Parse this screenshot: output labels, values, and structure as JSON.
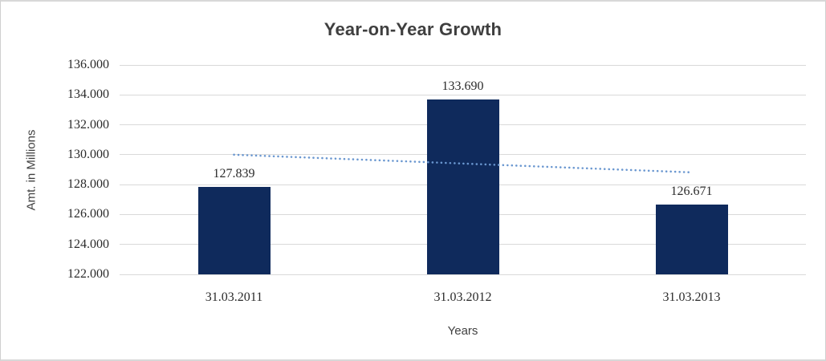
{
  "chart_data": {
    "type": "bar",
    "title": "Year-on-Year Growth",
    "xlabel": "Years",
    "ylabel": "Amt. in Millions",
    "categories": [
      "31.03.2011",
      "31.03.2012",
      "31.03.2013"
    ],
    "values": [
      127.839,
      133.69,
      126.671
    ],
    "value_labels": [
      "127.839",
      "133.690",
      "126.671"
    ],
    "ylim": [
      122.0,
      136.0
    ],
    "yticks": [
      {
        "value": 136.0,
        "label": "136.000"
      },
      {
        "value": 134.0,
        "label": "134.000"
      },
      {
        "value": 132.0,
        "label": "132.000"
      },
      {
        "value": 130.0,
        "label": "130.000"
      },
      {
        "value": 128.0,
        "label": "128.000"
      },
      {
        "value": 126.0,
        "label": "126.000"
      },
      {
        "value": 124.0,
        "label": "124.000"
      },
      {
        "value": 122.0,
        "label": "122.000"
      }
    ],
    "grid": true,
    "legend_position": "none",
    "trendline": {
      "type": "linear",
      "style": "dotted",
      "start_value": 130.0,
      "end_value": 128.82
    },
    "colors": {
      "bar": "#0f2a5c",
      "trendline": "#6a97d0",
      "gridline": "#d9d9d9",
      "title": "#3f3f3f",
      "axis_titles": "#404040",
      "tick_labels": "#2b2b2b",
      "data_labels": "#2b2b2b",
      "frame_border": "#d8d8d8",
      "background": "#ffffff"
    }
  }
}
